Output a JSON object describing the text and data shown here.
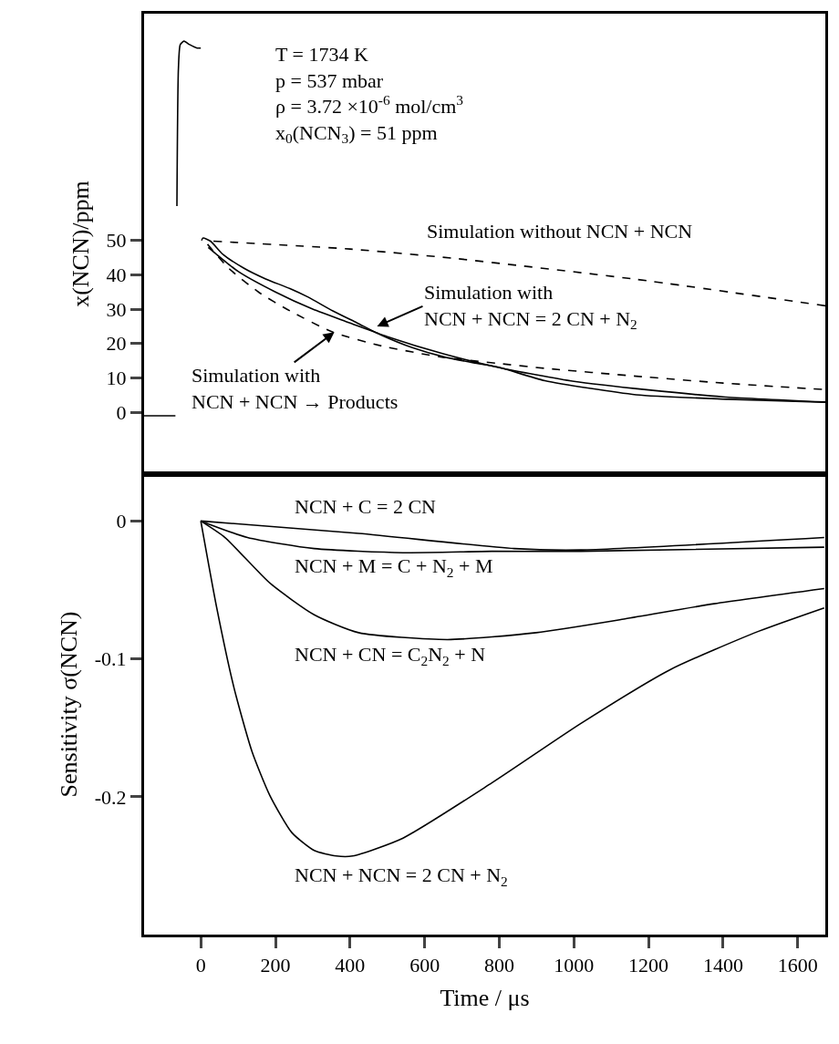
{
  "chart_data": [
    {
      "type": "line",
      "ylabel": "x(NCN)/ppm",
      "xlim": [
        -152,
        1674
      ],
      "ylim": [
        -18,
        116
      ],
      "yticks": [
        0,
        10,
        20,
        30,
        40,
        50
      ],
      "tick_labels": "y",
      "grid": false,
      "marker": "none",
      "series": [
        {
          "color": "#000000",
          "line_style": "solid",
          "x": [
            -152,
            -100,
            -68,
            -67,
            -64,
            -60,
            -55,
            -45,
            -30,
            -10,
            0,
            1,
            2,
            6,
            26,
            59,
            116,
            174,
            239,
            288,
            354,
            419,
            485,
            567,
            649,
            731,
            799,
            922,
            1167,
            1414,
            1674
          ],
          "values": [
            -1,
            -1,
            -1,
            null,
            60,
            100,
            107,
            108,
            107,
            106,
            106,
            null,
            50,
            50.7,
            49.8,
            46,
            41.9,
            38.8,
            36,
            33.5,
            29.5,
            26,
            22.4,
            18.8,
            16.2,
            14.4,
            13.1,
            9.2,
            5.1,
            3.8,
            2.9
          ]
        },
        {
          "color": "#000000",
          "line_style": "solid",
          "x": [
            20,
            100,
            200,
            300,
            400,
            500,
            650,
            800,
            1000,
            1200,
            1400,
            1674
          ],
          "values": [
            48,
            41,
            35,
            30,
            26,
            22,
            17,
            13,
            9,
            6.5,
            4.5,
            3
          ]
        },
        {
          "color": "#000000",
          "line_style": "dashed",
          "x": [
            34,
            400,
            678,
            1167,
            1674
          ],
          "values": [
            49.8,
            47.5,
            44.8,
            38.7,
            31
          ]
        },
        {
          "color": "#000000",
          "line_style": "dashed",
          "x": [
            18,
            75,
            157,
            239,
            354,
            485,
            649,
            799,
            922,
            1167,
            1400,
            1674
          ],
          "values": [
            48.9,
            41.9,
            34.8,
            29.5,
            23.3,
            19.3,
            16,
            14.2,
            12.8,
            10.5,
            8.5,
            6.6
          ]
        }
      ],
      "annotations": [
        "T = 1734 K\np = 537 mbar\nρ = 3.72 ×10$^{-6}$ mol/cm$^{3}$\nx$_{0}$(NCN$_{3}$) = 51 ppm",
        "Simulation without NCN + NCN",
        "Simulation with\nNCN + NCN = 2 CN + N$_{2}$",
        {
          "text": "Simulation with\nNCN + NCN → Products",
          "x": 358,
          "y": 23.3
        }
      ]
    },
    {
      "type": "line",
      "xlabel": "Time / μs",
      "ylabel": "Sensitivity σ(NCN)",
      "xlim": [
        -152,
        1674
      ],
      "ylim": [
        -0.3,
        0.034
      ],
      "xticks": [
        0,
        200,
        400,
        600,
        800,
        1000,
        1200,
        1400,
        1600
      ],
      "yticks": [
        0,
        -0.1,
        -0.2
      ],
      "grid": false,
      "marker": "none",
      "series": [
        {
          "color": "#000000",
          "line_style": "solid",
          "x": [
            0,
            423,
            840,
            1018,
            1671
          ],
          "values": [
            0,
            -0.009,
            -0.02,
            -0.021,
            -0.012
          ]
        },
        {
          "color": "#000000",
          "line_style": "solid",
          "x": [
            0,
            125,
            304,
            542,
            780,
            1018,
            1671
          ],
          "values": [
            0,
            -0.012,
            -0.02,
            -0.023,
            -0.022,
            -0.022,
            -0.019
          ]
        },
        {
          "color": "#000000",
          "line_style": "solid",
          "x": [
            0,
            65,
            185,
            304,
            423,
            661,
            899,
            1137,
            1376,
            1671
          ],
          "values": [
            0,
            -0.012,
            -0.045,
            -0.068,
            -0.081,
            -0.086,
            -0.081,
            -0.071,
            -0.06,
            -0.049
          ]
        },
        {
          "color": "#000000",
          "line_style": "solid",
          "x": [
            0,
            42,
            89,
            137,
            185,
            244,
            304,
            363,
            407,
            542,
            780,
            1018,
            1257,
            1495,
            1671
          ],
          "values": [
            0,
            -0.062,
            -0.121,
            -0.167,
            -0.199,
            -0.226,
            -0.239,
            -0.243,
            -0.243,
            -0.23,
            -0.19,
            -0.147,
            -0.108,
            -0.08,
            -0.063
          ]
        }
      ],
      "annotations": [
        "NCN + C = 2 CN",
        "NCN + M = C + N$_{2}$ + M",
        "NCN + CN = C$_{2}$N$_{2}$ + N",
        "NCN + NCN = 2 CN + N$_{2}$"
      ]
    }
  ]
}
